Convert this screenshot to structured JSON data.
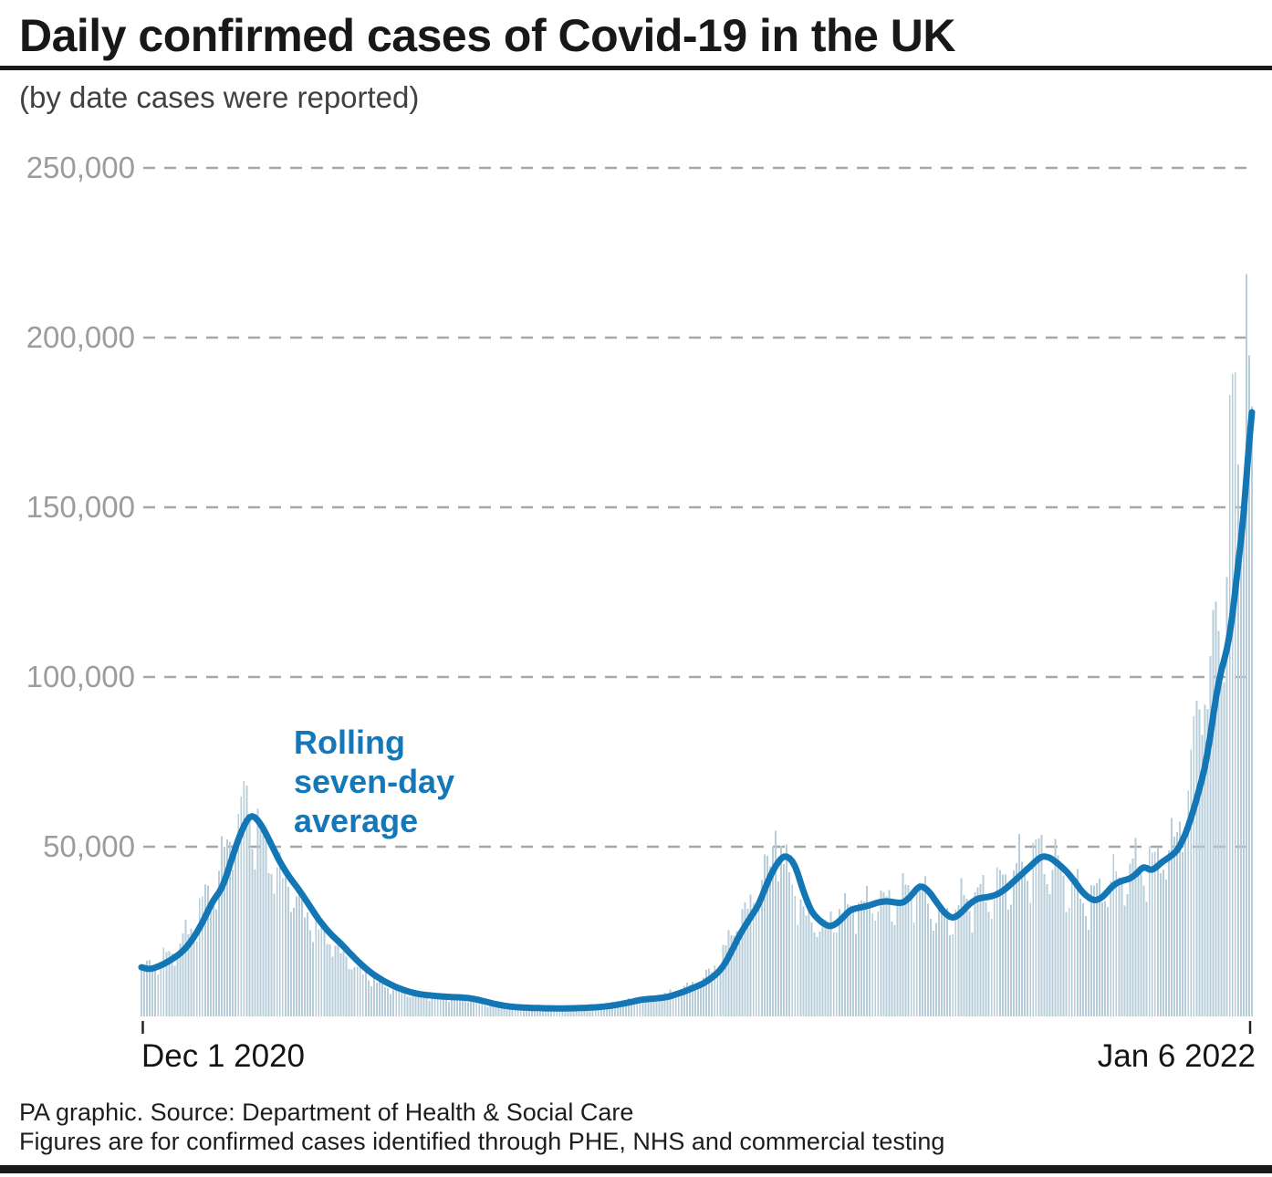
{
  "title": "Daily confirmed cases of Covid-19 in the UK",
  "subtitle": "(by date cases were reported)",
  "annotation": {
    "lines": [
      "Rolling",
      "seven-day",
      "average"
    ]
  },
  "y_axis": {
    "ticks": [
      "250,000",
      "200,000",
      "150,000",
      "100,000",
      "50,000"
    ]
  },
  "x_axis": {
    "start": "Dec 1 2020",
    "end": "Jan 6 2022"
  },
  "footer": {
    "line1": "PA graphic. Source: Department of Health & Social Care",
    "line2": "Figures are for confirmed cases identified through PHE, NHS and commercial testing"
  },
  "colors": {
    "bar": "#b7cdd9",
    "line": "#1377b6",
    "grid": "#a7a7a7",
    "axis_text": "#9c9c9c",
    "annotation_text": "#1478b8",
    "tick": "#222222"
  },
  "chart_data": {
    "type": "bar",
    "title": "Daily confirmed cases of Covid-19 in the UK",
    "subtitle": "(by date cases were reported)",
    "x_start_label": "Dec 1 2020",
    "x_end_label": "Jan 6 2022",
    "days_total": 402,
    "ylim": [
      0,
      250000
    ],
    "y_gridlines": [
      50000,
      100000,
      150000,
      200000,
      250000
    ],
    "grid": "dashed-horizontal",
    "legend_position": "none",
    "series": [
      {
        "name": "Daily confirmed cases",
        "type": "bar",
        "synthesis": {
          "note": "daily bars oscillate around the rolling average; reconstructed from line control points with weekly reporting pattern",
          "lead_days": 3,
          "weekly_factors": [
            1.02,
            1.08,
            1.11,
            1.06,
            1.0,
            0.87,
            0.8
          ],
          "jitter": {
            "a1": 0.07,
            "f1": 2.399,
            "p1": 1.3,
            "a2": 0.045,
            "f2": 0.937,
            "p2": 0.0
          },
          "explicit_values": {
            "29": 53135,
            "38": 68053,
            "229": 54674,
            "379": 78610,
            "380": 88376,
            "381": 93045,
            "382": 90418,
            "383": 82886,
            "384": 91743,
            "385": 90629,
            "386": 106122,
            "387": 119789,
            "388": 122186,
            "389": 113628,
            "390": 103558,
            "391": 98515,
            "392": 129471,
            "393": 183037,
            "394": 189213,
            "395": 189846,
            "396": 162572,
            "397": 137583,
            "398": 157758,
            "399": 218724,
            "400": 194747,
            "401": 179756
          }
        }
      },
      {
        "name": "Rolling seven-day average",
        "type": "line",
        "points": [
          [
            0,
            14500
          ],
          [
            3,
            13800
          ],
          [
            7,
            15000
          ],
          [
            10,
            16300
          ],
          [
            14,
            18500
          ],
          [
            17,
            21000
          ],
          [
            21,
            26000
          ],
          [
            24,
            31000
          ],
          [
            26,
            34500
          ],
          [
            28,
            36200
          ],
          [
            30,
            39500
          ],
          [
            33,
            47500
          ],
          [
            36,
            54500
          ],
          [
            39,
            59300
          ],
          [
            41,
            59000
          ],
          [
            44,
            55500
          ],
          [
            47,
            50500
          ],
          [
            50,
            45500
          ],
          [
            53,
            41500
          ],
          [
            57,
            37200
          ],
          [
            60,
            33500
          ],
          [
            64,
            28500
          ],
          [
            68,
            24500
          ],
          [
            72,
            21500
          ],
          [
            76,
            18000
          ],
          [
            80,
            14800
          ],
          [
            84,
            12200
          ],
          [
            88,
            10200
          ],
          [
            92,
            8600
          ],
          [
            96,
            7400
          ],
          [
            100,
            6600
          ],
          [
            104,
            6200
          ],
          [
            108,
            5900
          ],
          [
            112,
            5700
          ],
          [
            116,
            5600
          ],
          [
            120,
            5200
          ],
          [
            124,
            4400
          ],
          [
            128,
            3600
          ],
          [
            132,
            3000
          ],
          [
            136,
            2700
          ],
          [
            141,
            2500
          ],
          [
            146,
            2400
          ],
          [
            151,
            2350
          ],
          [
            156,
            2400
          ],
          [
            161,
            2550
          ],
          [
            166,
            2800
          ],
          [
            171,
            3300
          ],
          [
            176,
            4100
          ],
          [
            181,
            5000
          ],
          [
            186,
            5300
          ],
          [
            190,
            5700
          ],
          [
            196,
            7300
          ],
          [
            203,
            9700
          ],
          [
            207,
            12000
          ],
          [
            210,
            14500
          ],
          [
            213,
            19000
          ],
          [
            216,
            24000
          ],
          [
            219,
            28000
          ],
          [
            223,
            33000
          ],
          [
            226,
            39500
          ],
          [
            229,
            44500
          ],
          [
            232,
            47600
          ],
          [
            234,
            46800
          ],
          [
            236,
            44900
          ],
          [
            239,
            36800
          ],
          [
            242,
            30600
          ],
          [
            246,
            27400
          ],
          [
            249,
            26300
          ],
          [
            252,
            28000
          ],
          [
            256,
            31500
          ],
          [
            262,
            32500
          ],
          [
            266,
            33600
          ],
          [
            269,
            34000
          ],
          [
            272,
            33600
          ],
          [
            275,
            33300
          ],
          [
            278,
            35500
          ],
          [
            281,
            38800
          ],
          [
            284,
            37300
          ],
          [
            287,
            33800
          ],
          [
            290,
            30400
          ],
          [
            293,
            28700
          ],
          [
            296,
            30500
          ],
          [
            299,
            33200
          ],
          [
            302,
            34800
          ],
          [
            306,
            35200
          ],
          [
            309,
            35900
          ],
          [
            312,
            37500
          ],
          [
            316,
            40500
          ],
          [
            320,
            43500
          ],
          [
            325,
            47300
          ],
          [
            328,
            46900
          ],
          [
            331,
            45000
          ],
          [
            334,
            42800
          ],
          [
            337,
            39800
          ],
          [
            340,
            36300
          ],
          [
            344,
            33900
          ],
          [
            347,
            35000
          ],
          [
            351,
            38800
          ],
          [
            354,
            40000
          ],
          [
            357,
            40500
          ],
          [
            360,
            42500
          ],
          [
            362,
            44700
          ],
          [
            364,
            42800
          ],
          [
            366,
            43500
          ],
          [
            368,
            45200
          ],
          [
            371,
            46800
          ],
          [
            374,
            48700
          ],
          [
            377,
            53500
          ],
          [
            380,
            61000
          ],
          [
            382,
            67000
          ],
          [
            384,
            72800
          ],
          [
            386,
            82500
          ],
          [
            388,
            94400
          ],
          [
            390,
            102700
          ],
          [
            392,
            107500
          ],
          [
            394,
            117500
          ],
          [
            396,
            133600
          ],
          [
            398,
            146000
          ],
          [
            399,
            158000
          ],
          [
            400,
            172000
          ],
          [
            401,
            178000
          ]
        ]
      }
    ]
  }
}
